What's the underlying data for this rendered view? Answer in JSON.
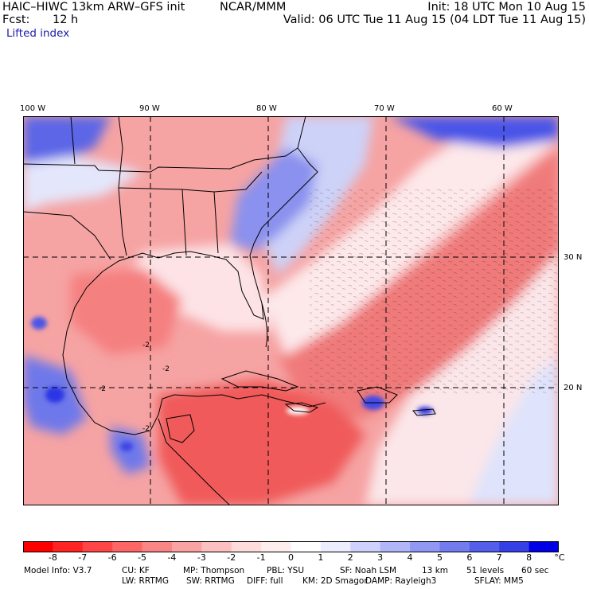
{
  "header": {
    "model_line": "HAIC–HIWC 13km ARW–GFS init",
    "org": "NCAR/MMM",
    "init": "Init: 18 UTC Mon 10 Aug 15",
    "fcst_label": "Fcst:",
    "fcst_value": "12 h",
    "valid": "Valid: 06 UTC Tue 11 Aug 15 (04 LDT Tue 11 Aug 15)",
    "field": "Lifted index"
  },
  "map": {
    "lon_labels": [
      "100 W",
      "90 W",
      "80 W",
      "70 W",
      "60 W"
    ],
    "lat_labels": [
      "30 N",
      "20 N"
    ],
    "contour_labels": [
      "-2",
      "-2",
      "-2",
      "-2"
    ],
    "colors": {
      "strong_negative": "#ff2a2a",
      "negative": "#f27b7b",
      "weak_negative": "#fbc6c6",
      "neutral": "#ffffff",
      "weak_positive": "#c9cdf7",
      "positive": "#6e78ea",
      "strong_positive": "#1414e6"
    }
  },
  "colorbar": {
    "labels": [
      "-8",
      "-7",
      "-6",
      "-5",
      "-4",
      "-3",
      "-2",
      "-1",
      "0",
      "1",
      "2",
      "3",
      "4",
      "5",
      "6",
      "7",
      "8"
    ],
    "unit": "°C",
    "colors": [
      "#ff0000",
      "#ff2424",
      "#ff4646",
      "#fd6666",
      "#fa8585",
      "#faa3a3",
      "#fcc0c0",
      "#fedcdc",
      "#ffeeee",
      "#ffffff",
      "#eceeff",
      "#cdd1fb",
      "#b0b6f7",
      "#9198f3",
      "#737cef",
      "#545eeb",
      "#3440e6",
      "#0000e6"
    ]
  },
  "footer": {
    "line1": [
      {
        "k": "Model Info: V3.7"
      },
      {
        "k": "CU: KF"
      },
      {
        "k": "MP: Thompson"
      },
      {
        "k": "PBL: YSU"
      },
      {
        "k": "SF: Noah LSM"
      },
      {
        "k": "13 km"
      },
      {
        "k": "51 levels"
      },
      {
        "k": "60 sec"
      }
    ],
    "line2": [
      {
        "k": "LW: RRTMG"
      },
      {
        "k": "SW: RRTMG"
      },
      {
        "k": "DIFF: full"
      },
      {
        "k": "KM: 2D Smagor"
      },
      {
        "k": "DAMP: Rayleigh3"
      },
      {
        "k": "SFLAY: MM5"
      }
    ]
  }
}
